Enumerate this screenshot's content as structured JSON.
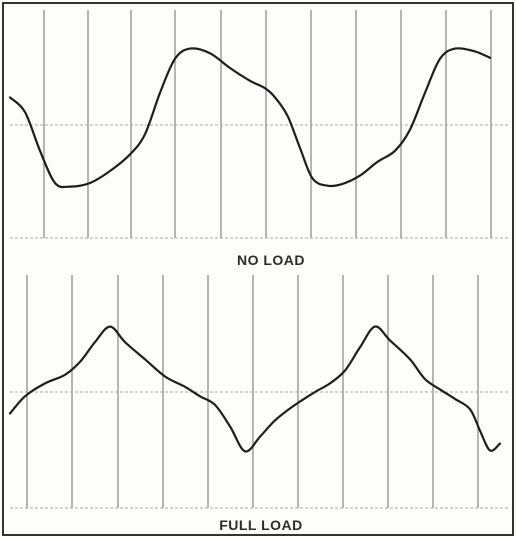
{
  "panels": [
    {
      "caption": "NO LOAD",
      "waveform": [
        [
          0.0,
          0.3
        ],
        [
          0.03,
          0.14
        ],
        [
          0.06,
          -0.28
        ],
        [
          0.09,
          -0.63
        ],
        [
          0.12,
          -0.67
        ],
        [
          0.16,
          -0.63
        ],
        [
          0.2,
          -0.5
        ],
        [
          0.24,
          -0.32
        ],
        [
          0.27,
          -0.1
        ],
        [
          0.3,
          0.35
        ],
        [
          0.33,
          0.72
        ],
        [
          0.36,
          0.83
        ],
        [
          0.4,
          0.78
        ],
        [
          0.44,
          0.62
        ],
        [
          0.48,
          0.48
        ],
        [
          0.51,
          0.4
        ],
        [
          0.53,
          0.3
        ],
        [
          0.555,
          0.1
        ],
        [
          0.58,
          -0.25
        ],
        [
          0.605,
          -0.58
        ],
        [
          0.635,
          -0.66
        ],
        [
          0.665,
          -0.64
        ],
        [
          0.7,
          -0.55
        ],
        [
          0.735,
          -0.4
        ],
        [
          0.77,
          -0.28
        ],
        [
          0.8,
          -0.05
        ],
        [
          0.83,
          0.35
        ],
        [
          0.86,
          0.72
        ],
        [
          0.89,
          0.83
        ],
        [
          0.93,
          0.8
        ],
        [
          0.96,
          0.73
        ]
      ]
    },
    {
      "caption": "FULL LOAD",
      "waveform": [
        [
          0.0,
          -0.25
        ],
        [
          0.03,
          -0.05
        ],
        [
          0.07,
          0.1
        ],
        [
          0.11,
          0.2
        ],
        [
          0.14,
          0.35
        ],
        [
          0.17,
          0.58
        ],
        [
          0.2,
          0.76
        ],
        [
          0.23,
          0.58
        ],
        [
          0.27,
          0.38
        ],
        [
          0.31,
          0.18
        ],
        [
          0.35,
          0.06
        ],
        [
          0.38,
          -0.05
        ],
        [
          0.41,
          -0.15
        ],
        [
          0.44,
          -0.4
        ],
        [
          0.47,
          -0.69
        ],
        [
          0.5,
          -0.52
        ],
        [
          0.53,
          -0.33
        ],
        [
          0.57,
          -0.15
        ],
        [
          0.61,
          0.0
        ],
        [
          0.64,
          0.1
        ],
        [
          0.67,
          0.25
        ],
        [
          0.7,
          0.52
        ],
        [
          0.73,
          0.76
        ],
        [
          0.76,
          0.6
        ],
        [
          0.8,
          0.38
        ],
        [
          0.83,
          0.15
        ],
        [
          0.86,
          0.03
        ],
        [
          0.89,
          -0.08
        ],
        [
          0.92,
          -0.2
        ],
        [
          0.94,
          -0.45
        ],
        [
          0.96,
          -0.68
        ],
        [
          0.98,
          -0.6
        ]
      ]
    }
  ],
  "colors": {
    "trace": "#1e1e1e",
    "grid": "#7a7a7a",
    "grid_light": "#a8a8a8",
    "frame": "#333333"
  }
}
